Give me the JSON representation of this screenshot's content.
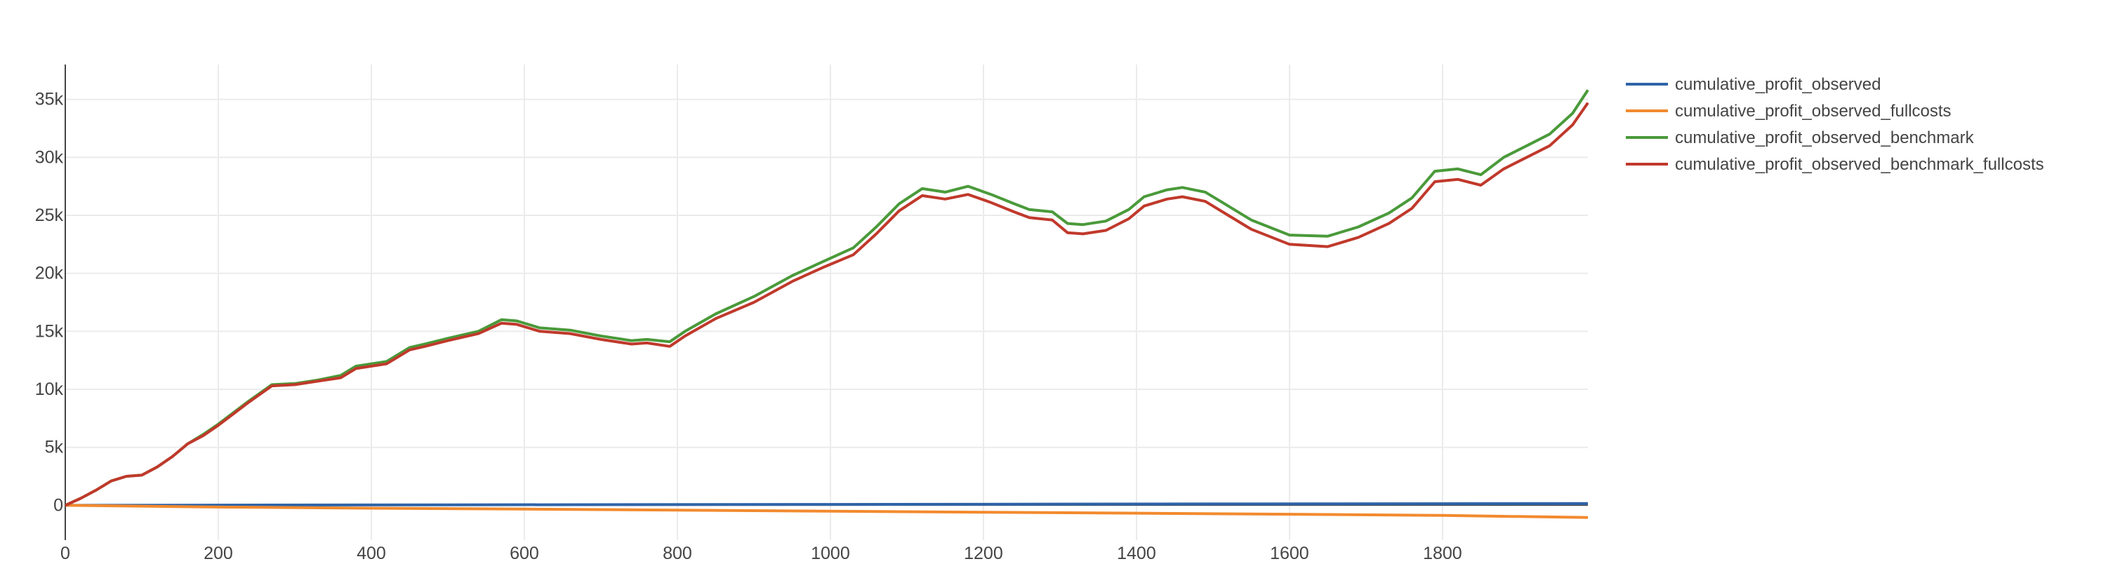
{
  "chart_data": {
    "type": "line",
    "title": "",
    "xlabel": "",
    "ylabel": "",
    "xlim": [
      0,
      1990
    ],
    "ylim": [
      -3000,
      38000
    ],
    "x_ticks": [
      0,
      200,
      400,
      600,
      800,
      1000,
      1200,
      1400,
      1600,
      1800
    ],
    "x_tick_labels": [
      "0",
      "200",
      "400",
      "600",
      "800",
      "1000",
      "1200",
      "1400",
      "1600",
      "1800"
    ],
    "y_ticks": [
      0,
      5000,
      10000,
      15000,
      20000,
      25000,
      30000,
      35000
    ],
    "y_tick_labels": [
      "0",
      "5k",
      "10k",
      "15k",
      "20k",
      "25k",
      "30k",
      "35k"
    ],
    "grid": true,
    "legend_position": "top-right, outside plot",
    "series": [
      {
        "name": "cumulative_profit_observed",
        "color": "#2f64a8",
        "points": [
          [
            0,
            0
          ],
          [
            500,
            40
          ],
          [
            1000,
            80
          ],
          [
            1500,
            120
          ],
          [
            1990,
            150
          ]
        ]
      },
      {
        "name": "cumulative_profit_observed_fullcosts",
        "color": "#f28a2e",
        "points": [
          [
            0,
            0
          ],
          [
            200,
            -150
          ],
          [
            400,
            -250
          ],
          [
            600,
            -330
          ],
          [
            800,
            -420
          ],
          [
            1000,
            -510
          ],
          [
            1200,
            -600
          ],
          [
            1400,
            -680
          ],
          [
            1600,
            -770
          ],
          [
            1800,
            -870
          ],
          [
            1990,
            -1050
          ]
        ]
      },
      {
        "name": "cumulative_profit_observed_benchmark",
        "color": "#4a9a3a",
        "points": [
          [
            0,
            0
          ],
          [
            20,
            600
          ],
          [
            40,
            1300
          ],
          [
            60,
            2100
          ],
          [
            80,
            2500
          ],
          [
            100,
            2600
          ],
          [
            120,
            3300
          ],
          [
            140,
            4200
          ],
          [
            160,
            5300
          ],
          [
            180,
            6100
          ],
          [
            200,
            7000
          ],
          [
            220,
            8000
          ],
          [
            240,
            9000
          ],
          [
            270,
            10400
          ],
          [
            300,
            10500
          ],
          [
            330,
            10800
          ],
          [
            360,
            11200
          ],
          [
            380,
            12000
          ],
          [
            420,
            12400
          ],
          [
            450,
            13600
          ],
          [
            470,
            13900
          ],
          [
            500,
            14400
          ],
          [
            540,
            15000
          ],
          [
            570,
            16000
          ],
          [
            590,
            15900
          ],
          [
            620,
            15300
          ],
          [
            660,
            15100
          ],
          [
            700,
            14600
          ],
          [
            740,
            14200
          ],
          [
            760,
            14300
          ],
          [
            790,
            14100
          ],
          [
            810,
            15000
          ],
          [
            850,
            16500
          ],
          [
            900,
            18000
          ],
          [
            950,
            19800
          ],
          [
            990,
            21000
          ],
          [
            1030,
            22200
          ],
          [
            1060,
            24000
          ],
          [
            1090,
            26000
          ],
          [
            1120,
            27300
          ],
          [
            1150,
            27000
          ],
          [
            1180,
            27500
          ],
          [
            1210,
            26800
          ],
          [
            1240,
            26000
          ],
          [
            1260,
            25500
          ],
          [
            1290,
            25300
          ],
          [
            1310,
            24300
          ],
          [
            1330,
            24200
          ],
          [
            1360,
            24500
          ],
          [
            1390,
            25500
          ],
          [
            1410,
            26600
          ],
          [
            1440,
            27200
          ],
          [
            1460,
            27400
          ],
          [
            1490,
            27000
          ],
          [
            1520,
            25800
          ],
          [
            1550,
            24600
          ],
          [
            1600,
            23300
          ],
          [
            1650,
            23200
          ],
          [
            1690,
            24000
          ],
          [
            1730,
            25200
          ],
          [
            1760,
            26500
          ],
          [
            1790,
            28800
          ],
          [
            1820,
            29000
          ],
          [
            1850,
            28500
          ],
          [
            1880,
            30000
          ],
          [
            1910,
            31000
          ],
          [
            1940,
            32000
          ],
          [
            1970,
            33800
          ],
          [
            1990,
            35800
          ]
        ]
      },
      {
        "name": "cumulative_profit_observed_benchmark_fullcosts",
        "color": "#c0392b",
        "points": [
          [
            0,
            0
          ],
          [
            20,
            600
          ],
          [
            40,
            1300
          ],
          [
            60,
            2100
          ],
          [
            80,
            2500
          ],
          [
            100,
            2600
          ],
          [
            120,
            3300
          ],
          [
            140,
            4200
          ],
          [
            160,
            5300
          ],
          [
            180,
            6000
          ],
          [
            200,
            6900
          ],
          [
            220,
            7900
          ],
          [
            240,
            8900
          ],
          [
            270,
            10300
          ],
          [
            300,
            10400
          ],
          [
            330,
            10700
          ],
          [
            360,
            11000
          ],
          [
            380,
            11800
          ],
          [
            420,
            12200
          ],
          [
            450,
            13400
          ],
          [
            470,
            13700
          ],
          [
            500,
            14200
          ],
          [
            540,
            14800
          ],
          [
            570,
            15700
          ],
          [
            590,
            15600
          ],
          [
            620,
            15000
          ],
          [
            660,
            14800
          ],
          [
            700,
            14300
          ],
          [
            740,
            13900
          ],
          [
            760,
            14000
          ],
          [
            790,
            13700
          ],
          [
            810,
            14600
          ],
          [
            850,
            16100
          ],
          [
            900,
            17500
          ],
          [
            950,
            19300
          ],
          [
            990,
            20500
          ],
          [
            1030,
            21600
          ],
          [
            1060,
            23400
          ],
          [
            1090,
            25400
          ],
          [
            1120,
            26700
          ],
          [
            1150,
            26400
          ],
          [
            1180,
            26800
          ],
          [
            1210,
            26100
          ],
          [
            1240,
            25300
          ],
          [
            1260,
            24800
          ],
          [
            1290,
            24600
          ],
          [
            1310,
            23500
          ],
          [
            1330,
            23400
          ],
          [
            1360,
            23700
          ],
          [
            1390,
            24700
          ],
          [
            1410,
            25800
          ],
          [
            1440,
            26400
          ],
          [
            1460,
            26600
          ],
          [
            1490,
            26200
          ],
          [
            1520,
            25000
          ],
          [
            1550,
            23800
          ],
          [
            1600,
            22500
          ],
          [
            1650,
            22300
          ],
          [
            1690,
            23100
          ],
          [
            1730,
            24300
          ],
          [
            1760,
            25600
          ],
          [
            1790,
            27900
          ],
          [
            1820,
            28100
          ],
          [
            1850,
            27600
          ],
          [
            1880,
            29000
          ],
          [
            1910,
            30000
          ],
          [
            1940,
            31000
          ],
          [
            1970,
            32800
          ],
          [
            1990,
            34700
          ]
        ]
      }
    ]
  }
}
